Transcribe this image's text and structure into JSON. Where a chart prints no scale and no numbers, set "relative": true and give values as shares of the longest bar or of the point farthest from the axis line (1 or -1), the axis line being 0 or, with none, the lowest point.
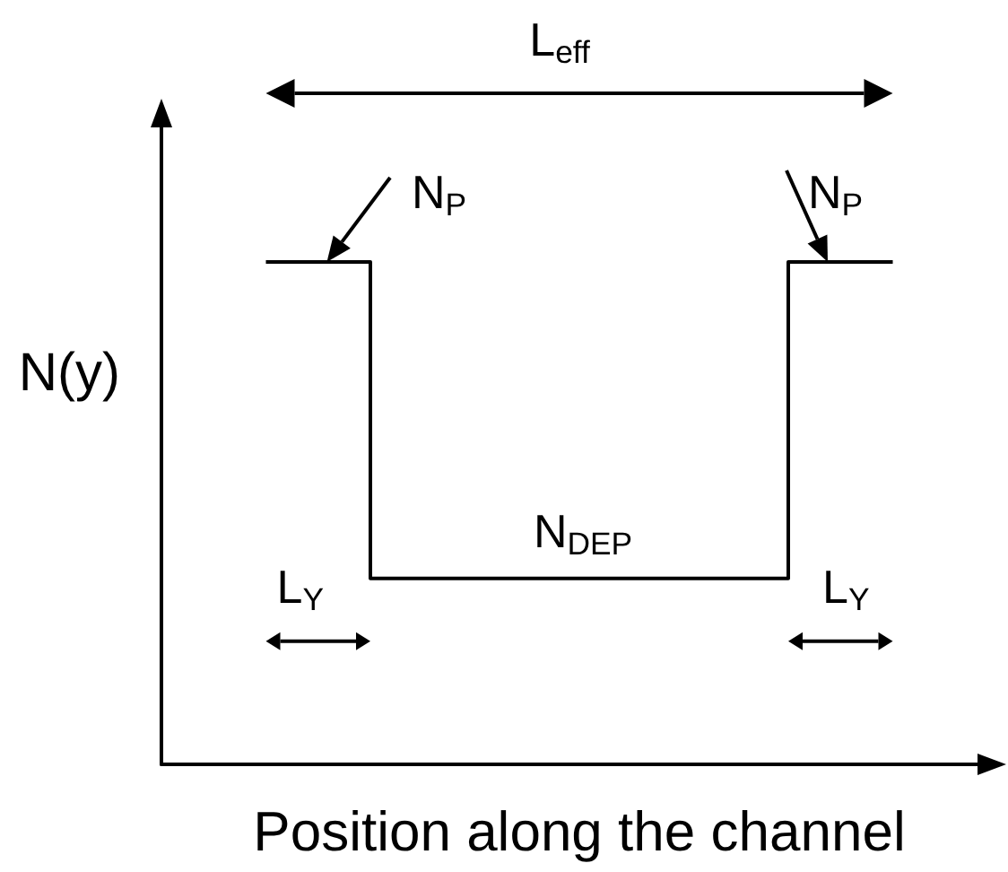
{
  "chart_data": {
    "type": "step",
    "categories": [
      null,
      null,
      null,
      null,
      null,
      null,
      null,
      null,
      null
    ],
    "values": [
      null,
      1,
      0.37,
      0.37,
      0.37,
      0.37,
      1,
      1,
      null
    ],
    "relative": true,
    "color": "#000000",
    "xlabel": "Position along the channel",
    "ylabel": "N(y)",
    "annotations": [
      "L$_{eff}$",
      "N$_{P}$",
      "N$_{P}$",
      "N$_{DEP}$",
      "L$_{Y}$",
      "L$_{Y}$"
    ],
    "grid": false,
    "marker": "none",
    "line_style": "solid"
  }
}
